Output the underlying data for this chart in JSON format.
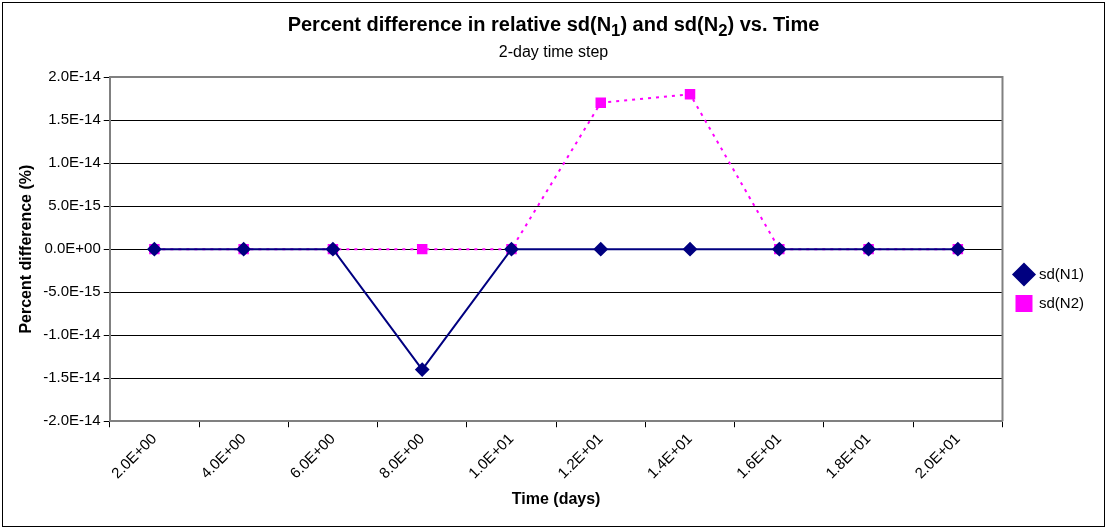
{
  "chart_data": {
    "type": "line",
    "title": "Percent difference in relative sd(N$_{1}$) and sd(N$_{2}$) vs. Time",
    "subtitle": "2-day time step",
    "xlabel": "Time (days)",
    "ylabel": "Percent difference (%)",
    "categories": [
      "2.0E+00",
      "4.0E+00",
      "6.0E+00",
      "8.0E+00",
      "1.0E+01",
      "1.2E+01",
      "1.4E+01",
      "1.6E+01",
      "1.8E+01",
      "2.0E+01"
    ],
    "series": [
      {
        "name": "sd(N1)",
        "color": "#000080",
        "marker": "diamond",
        "line_style": "solid",
        "values": [
          0,
          0,
          0,
          -1.4e-14,
          0,
          0,
          0,
          0,
          0,
          0
        ]
      },
      {
        "name": "sd(N2)",
        "color": "#ff00ff",
        "marker": "square",
        "line_style": "dotted",
        "values": [
          0,
          0,
          0,
          0,
          0,
          1.7e-14,
          1.8e-14,
          0,
          0,
          0
        ]
      }
    ],
    "ylim": [
      -2e-14,
      2e-14
    ],
    "yticks": [
      {
        "value": -2e-14,
        "label": "-2.0E-14"
      },
      {
        "value": -1.5e-14,
        "label": "-1.5E-14"
      },
      {
        "value": -1e-14,
        "label": "-1.0E-14"
      },
      {
        "value": -5e-15,
        "label": "-5.0E-15"
      },
      {
        "value": 0,
        "label": "0.0E+00"
      },
      {
        "value": 5e-15,
        "label": "5.0E-15"
      },
      {
        "value": 1e-14,
        "label": "1.0E-14"
      },
      {
        "value": 1.5e-14,
        "label": "1.5E-14"
      },
      {
        "value": 2e-14,
        "label": "2.0E-14"
      }
    ],
    "grid": "y",
    "legend": "right"
  }
}
